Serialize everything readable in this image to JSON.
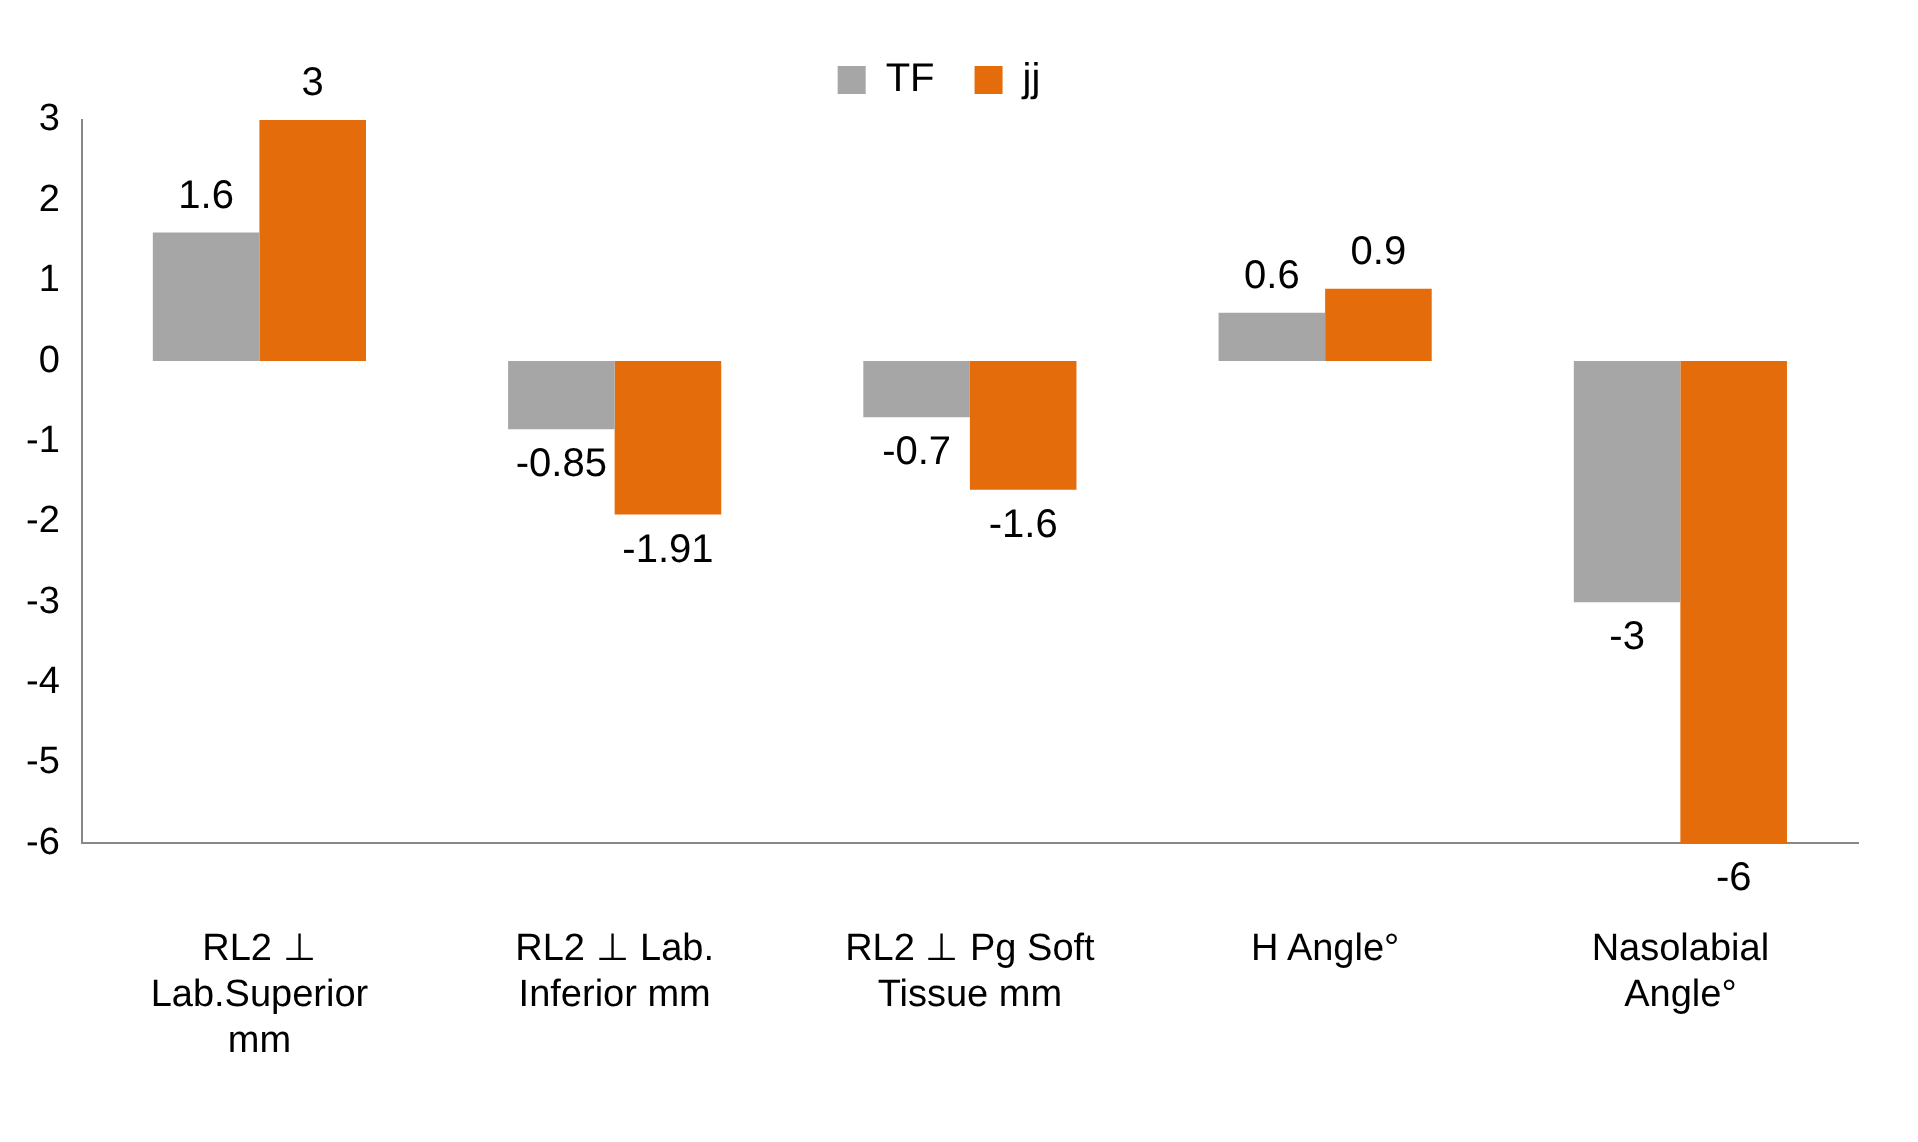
{
  "chart_data": {
    "type": "bar",
    "categories": [
      "RL2 ⊥ Lab.Superior mm",
      "RL2 ⊥ Lab. Inferior mm",
      "RL2 ⊥ Pg Soft Tissue mm",
      "H Angle°",
      "Nasolabial Angle°"
    ],
    "series": [
      {
        "name": "TF",
        "color": "#a6a6a6",
        "values": [
          1.6,
          -0.85,
          -0.7,
          0.6,
          -3
        ]
      },
      {
        "name": "jj",
        "color": "#e46c0a",
        "values": [
          3,
          -1.91,
          -1.6,
          0.9,
          -6
        ]
      }
    ],
    "ylim": [
      -6,
      3
    ],
    "yticks": [
      -6,
      -5,
      -4,
      -3,
      -2,
      -1,
      0,
      1,
      2,
      3
    ],
    "grid": false,
    "legend": "top",
    "data_labels": true
  }
}
